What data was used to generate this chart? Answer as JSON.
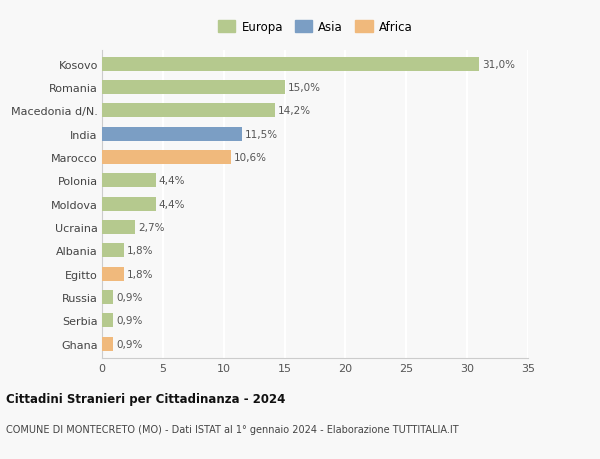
{
  "countries": [
    "Kosovo",
    "Romania",
    "Macedonia d/N.",
    "India",
    "Marocco",
    "Polonia",
    "Moldova",
    "Ucraina",
    "Albania",
    "Egitto",
    "Russia",
    "Serbia",
    "Ghana"
  ],
  "values": [
    31.0,
    15.0,
    14.2,
    11.5,
    10.6,
    4.4,
    4.4,
    2.7,
    1.8,
    1.8,
    0.9,
    0.9,
    0.9
  ],
  "labels": [
    "31,0%",
    "15,0%",
    "14,2%",
    "11,5%",
    "10,6%",
    "4,4%",
    "4,4%",
    "2,7%",
    "1,8%",
    "1,8%",
    "0,9%",
    "0,9%",
    "0,9%"
  ],
  "continents": [
    "Europa",
    "Europa",
    "Europa",
    "Asia",
    "Africa",
    "Europa",
    "Europa",
    "Europa",
    "Europa",
    "Africa",
    "Europa",
    "Europa",
    "Africa"
  ],
  "colors": {
    "Europa": "#b5c98e",
    "Asia": "#7b9ec4",
    "Africa": "#f0b97c"
  },
  "xlim": [
    0,
    35
  ],
  "xticks": [
    0,
    5,
    10,
    15,
    20,
    25,
    30,
    35
  ],
  "title": "Cittadini Stranieri per Cittadinanza - 2024",
  "subtitle": "COMUNE DI MONTECRETO (MO) - Dati ISTAT al 1° gennaio 2024 - Elaborazione TUTTITALIA.IT",
  "background_color": "#f8f8f8",
  "grid_color": "#ffffff",
  "bar_height": 0.6
}
